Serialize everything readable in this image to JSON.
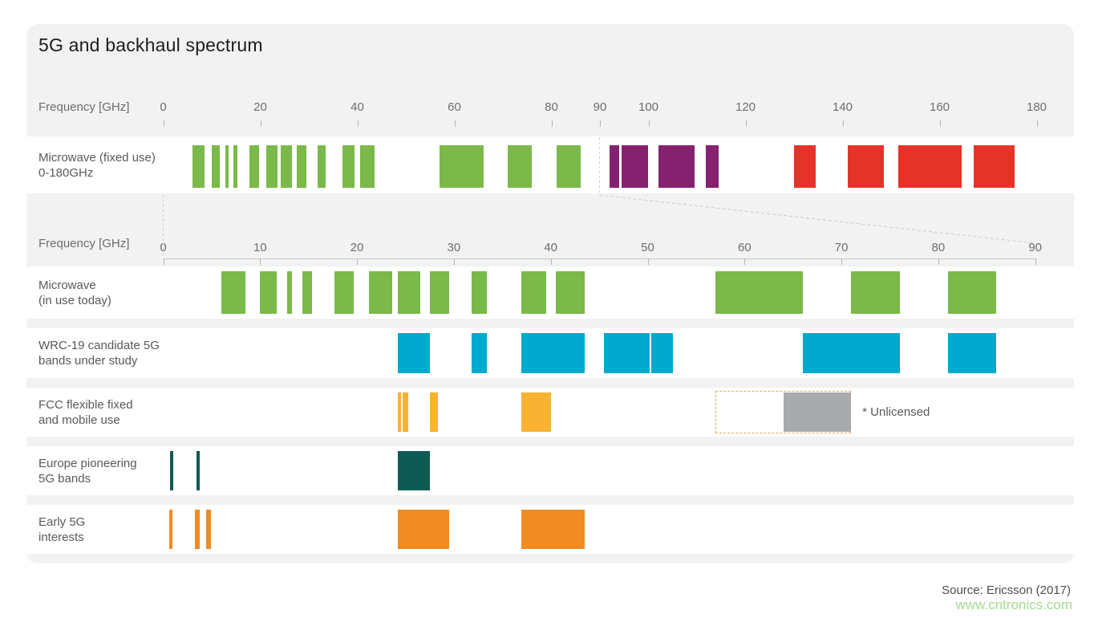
{
  "chart_data": {
    "type": "bar",
    "subtype": "frequency-spectrum-band-chart",
    "title": "5G and backhaul spectrum",
    "source": "Source: Ericsson (2017)",
    "watermark": "www.cntronics.com",
    "legend_position": "none",
    "grid": false,
    "axis_top": {
      "label": "Frequency [GHz]",
      "unit": "GHz",
      "range": [
        0,
        180
      ],
      "ticks": [
        0,
        20,
        40,
        60,
        80,
        90,
        100,
        120,
        140,
        160,
        180
      ]
    },
    "axis_main": {
      "label": "Frequency [GHz]",
      "unit": "GHz",
      "range": [
        0,
        90
      ],
      "ticks": [
        0,
        10,
        20,
        30,
        40,
        50,
        60,
        70,
        80,
        90
      ]
    },
    "rows": [
      {
        "id": "fixed",
        "axis": "top",
        "label_lines": [
          "Microwave (fixed use)",
          "0-180GHz"
        ],
        "segments": [
          {
            "from": 6,
            "to": 8.5,
            "color": "green"
          },
          {
            "from": 10,
            "to": 11.7,
            "color": "green"
          },
          {
            "from": 12.75,
            "to": 13.25,
            "color": "green"
          },
          {
            "from": 14.4,
            "to": 15.35,
            "color": "green"
          },
          {
            "from": 17.7,
            "to": 19.7,
            "color": "green"
          },
          {
            "from": 21.2,
            "to": 23.6,
            "color": "green"
          },
          {
            "from": 24.25,
            "to": 26.5,
            "color": "green"
          },
          {
            "from": 27.5,
            "to": 29.5,
            "color": "green"
          },
          {
            "from": 31.8,
            "to": 33.4,
            "color": "green"
          },
          {
            "from": 37,
            "to": 39.5,
            "color": "green"
          },
          {
            "from": 40.5,
            "to": 43.5,
            "color": "green"
          },
          {
            "from": 57,
            "to": 66,
            "color": "green"
          },
          {
            "from": 71,
            "to": 76,
            "color": "green"
          },
          {
            "from": 81,
            "to": 86,
            "color": "green"
          },
          {
            "from": 92,
            "to": 94,
            "color": "purple"
          },
          {
            "from": 94.5,
            "to": 100,
            "color": "purple"
          },
          {
            "from": 102,
            "to": 109.5,
            "color": "purple"
          },
          {
            "from": 111.8,
            "to": 114.5,
            "color": "purple"
          },
          {
            "from": 130,
            "to": 134.5,
            "color": "red"
          },
          {
            "from": 141,
            "to": 148.5,
            "color": "red"
          },
          {
            "from": 151.5,
            "to": 164.5,
            "color": "red"
          },
          {
            "from": 167,
            "to": 175.5,
            "color": "red"
          }
        ]
      },
      {
        "id": "inuse",
        "axis": "main",
        "label_lines": [
          "Microwave",
          "(in use today)"
        ],
        "color": "green",
        "segments": [
          {
            "from": 6,
            "to": 8.5
          },
          {
            "from": 10,
            "to": 11.7
          },
          {
            "from": 12.75,
            "to": 13.25
          },
          {
            "from": 14.4,
            "to": 15.35
          },
          {
            "from": 17.7,
            "to": 19.7
          },
          {
            "from": 21.2,
            "to": 23.6
          },
          {
            "from": 24.25,
            "to": 26.5
          },
          {
            "from": 27.5,
            "to": 29.5
          },
          {
            "from": 31.8,
            "to": 33.4
          },
          {
            "from": 37,
            "to": 39.5
          },
          {
            "from": 40.5,
            "to": 43.5
          },
          {
            "from": 57,
            "to": 66
          },
          {
            "from": 71,
            "to": 76
          },
          {
            "from": 81,
            "to": 86
          }
        ]
      },
      {
        "id": "wrc19",
        "axis": "main",
        "label_lines": [
          "WRC-19 candidate 5G",
          "bands under study"
        ],
        "color": "cyan",
        "segments": [
          {
            "from": 24.25,
            "to": 27.5
          },
          {
            "from": 31.8,
            "to": 33.4
          },
          {
            "from": 37,
            "to": 43.5
          },
          {
            "from": 45.5,
            "to": 50.2
          },
          {
            "from": 50.4,
            "to": 52.6
          },
          {
            "from": 66,
            "to": 76
          },
          {
            "from": 81,
            "to": 86
          }
        ]
      },
      {
        "id": "fcc",
        "axis": "main",
        "label_lines": [
          "FCC flexible fixed",
          "and mobile use"
        ],
        "color": "amber",
        "segments": [
          {
            "from": 24.25,
            "to": 24.45
          },
          {
            "from": 24.75,
            "to": 25.25
          },
          {
            "from": 27.5,
            "to": 28.35
          },
          {
            "from": 37,
            "to": 40
          }
        ],
        "unlicensed": {
          "box_from": 57,
          "box_to": 71,
          "bar_from": 64,
          "bar_to": 71,
          "bar_color": "gray",
          "label": "* Unlicensed"
        }
      },
      {
        "id": "europe",
        "axis": "main",
        "label_lines": [
          "Europe pioneering",
          "5G bands"
        ],
        "color": "teal",
        "segments": [
          {
            "from": 0.69,
            "to": 0.79
          },
          {
            "from": 3.4,
            "to": 3.8
          },
          {
            "from": 24.25,
            "to": 27.5
          }
        ]
      },
      {
        "id": "early",
        "axis": "main",
        "label_lines": [
          "Early 5G",
          "interests"
        ],
        "color": "orange",
        "segments": [
          {
            "from": 0.6,
            "to": 0.7
          },
          {
            "from": 3.3,
            "to": 3.8
          },
          {
            "from": 4.4,
            "to": 4.9
          },
          {
            "from": 24.25,
            "to": 29.5
          },
          {
            "from": 37,
            "to": 43.5
          }
        ]
      }
    ],
    "colors": {
      "green": "#7bb949",
      "purple": "#86216f",
      "red": "#e63329",
      "cyan": "#00a9ce",
      "amber": "#f9b233",
      "gray": "#a8aaad",
      "teal": "#0e5b53",
      "orange": "#f08c22",
      "card_background": "#f2f2f3",
      "row_background": "#ffffff",
      "guide_dash": "#cdcdcd"
    }
  }
}
